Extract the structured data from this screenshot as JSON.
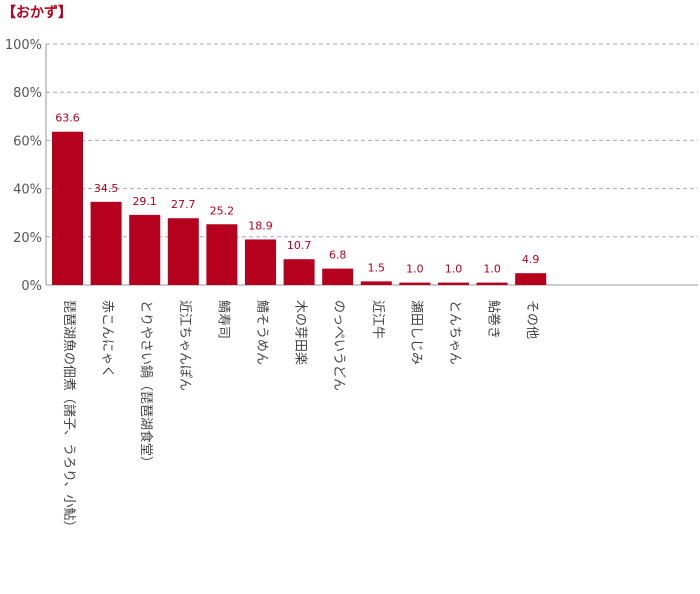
{
  "chart_data": {
    "type": "bar",
    "title": "【おかず】",
    "xlabel": "",
    "ylabel": "",
    "y_tick_labels": [
      "0%",
      "20%",
      "40%",
      "60%",
      "80%",
      "100%"
    ],
    "ylim": [
      0,
      100
    ],
    "grid": true,
    "bar_color": "#b5001e",
    "categories": [
      "琵琶湖魚の佃煮（諸子、うろり、小鮎）",
      "赤こんにゃく",
      "とりやさい鍋（琵琶湖食堂）",
      "近江ちゃんぽん",
      "鯖寿司",
      "鯖そうめん",
      "木の芽田楽",
      "のっぺいうどん",
      "近江牛",
      "瀬田しじみ",
      "とんちゃん",
      "鮎巻き",
      "その他"
    ],
    "values": [
      63.6,
      34.5,
      29.1,
      27.7,
      25.2,
      18.9,
      10.7,
      6.8,
      1.5,
      1.0,
      1.0,
      1.0,
      4.9
    ],
    "value_labels": [
      "63.6",
      "34.5",
      "29.1",
      "27.7",
      "25.2",
      "18.9",
      "10.7",
      "6.8",
      "1.5",
      "1.0",
      "1.0",
      "1.0",
      "4.9"
    ]
  }
}
